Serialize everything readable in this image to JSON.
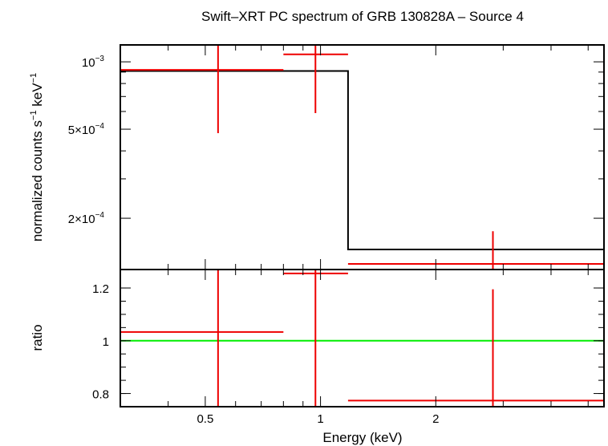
{
  "title": "Swift–XRT PC spectrum of GRB 130828A – Source 4",
  "colors": {
    "data": "#ee0000",
    "model": "#000000",
    "ratio_ref": "#00ee00",
    "frame": "#000000"
  },
  "chart_data": [
    {
      "type": "line",
      "panel": "spectrum",
      "ylabel_main": "normalized counts s",
      "ylabel_sup1": "−1",
      "ylabel_mid": " keV",
      "ylabel_sup2": "−1",
      "xscale": "log",
      "yscale": "log",
      "xlim": [
        0.3,
        5.5
      ],
      "ylim": [
        0.000118,
        0.00119
      ],
      "yticks": [
        {
          "value": 0.001,
          "label": "10",
          "sup": "−3"
        },
        {
          "value": 0.0005,
          "label": "5×10",
          "sup": "−4"
        },
        {
          "value": 0.0002,
          "label": "2×10",
          "sup": "−4"
        }
      ],
      "data_points": [
        {
          "xlo": 0.3,
          "xhi": 0.8,
          "x": 0.54,
          "y": 0.00092,
          "ylo": 0.00048,
          "yhi": 0.00119
        },
        {
          "xlo": 0.8,
          "xhi": 1.18,
          "x": 0.97,
          "y": 0.00108,
          "ylo": 0.00059,
          "yhi": 0.00119
        },
        {
          "xlo": 1.18,
          "xhi": 5.5,
          "x": 2.82,
          "y": 0.000125,
          "ylo": 0.000118,
          "yhi": 0.000175
        }
      ],
      "model": [
        {
          "xlo": 0.3,
          "xhi": 1.18,
          "y": 0.00091
        },
        {
          "xlo": 1.18,
          "xhi": 5.5,
          "y": 0.000145
        }
      ]
    },
    {
      "type": "line",
      "panel": "ratio",
      "ylabel": "ratio",
      "xlabel": "Energy (keV)",
      "xscale": "log",
      "xlim": [
        0.3,
        5.5
      ],
      "ylim": [
        0.75,
        1.27
      ],
      "yticks": [
        {
          "value": 1.2,
          "label": "1.2"
        },
        {
          "value": 1.0,
          "label": "1"
        },
        {
          "value": 0.8,
          "label": "0.8"
        }
      ],
      "xticks": [
        {
          "value": 0.5,
          "label": "0.5"
        },
        {
          "value": 1,
          "label": "1"
        },
        {
          "value": 2,
          "label": "2"
        }
      ],
      "reference_line": 1.0,
      "data_points": [
        {
          "xlo": 0.3,
          "xhi": 0.8,
          "x": 0.54,
          "y": 1.033,
          "ylo": 0.75,
          "yhi": 1.27
        },
        {
          "xlo": 0.8,
          "xhi": 1.18,
          "x": 0.97,
          "y": 1.255,
          "ylo": 0.75,
          "yhi": 1.27
        },
        {
          "xlo": 1.18,
          "xhi": 5.5,
          "x": 2.82,
          "y": 0.773,
          "ylo": 0.75,
          "yhi": 1.195
        }
      ]
    }
  ]
}
